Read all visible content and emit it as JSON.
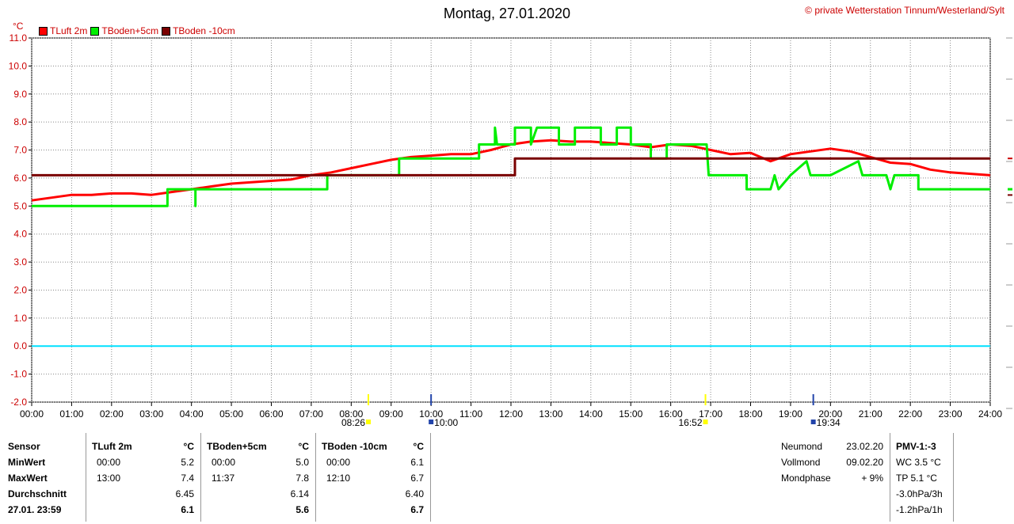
{
  "header": {
    "title": "Montag, 27.01.2020",
    "copyright": "© private Wetterstation Tinnum/Westerland/Sylt",
    "unit": "°C"
  },
  "chart_data": {
    "type": "line",
    "x_ticks": [
      "00:00",
      "01:00",
      "02:00",
      "03:00",
      "04:00",
      "05:00",
      "06:00",
      "07:00",
      "08:00",
      "09:00",
      "10:00",
      "11:00",
      "12:00",
      "13:00",
      "14:00",
      "15:00",
      "16:00",
      "17:00",
      "18:00",
      "19:00",
      "20:00",
      "21:00",
      "22:00",
      "23:00",
      "24:00"
    ],
    "y_ticks": [
      "11.0",
      "10.0",
      "9.0",
      "8.0",
      "7.0",
      "6.0",
      "5.0",
      "4.0",
      "3.0",
      "2.0",
      "1.0",
      "0.0",
      "-1.0",
      "-2.0"
    ],
    "xlim": [
      0,
      24
    ],
    "ylim": [
      -2,
      11
    ],
    "grid": true,
    "legend_position": "top-left",
    "zero_line_color": "#00e0ff",
    "series": [
      {
        "name": "TLuft 2m",
        "color": "#ff0000",
        "points": [
          [
            0,
            5.2
          ],
          [
            0.5,
            5.3
          ],
          [
            1,
            5.4
          ],
          [
            1.5,
            5.4
          ],
          [
            2,
            5.45
          ],
          [
            2.5,
            5.45
          ],
          [
            3,
            5.4
          ],
          [
            3.5,
            5.5
          ],
          [
            4,
            5.6
          ],
          [
            4.5,
            5.7
          ],
          [
            5,
            5.8
          ],
          [
            5.5,
            5.85
          ],
          [
            6,
            5.9
          ],
          [
            6.5,
            5.95
          ],
          [
            7,
            6.1
          ],
          [
            7.5,
            6.2
          ],
          [
            8,
            6.35
          ],
          [
            8.5,
            6.5
          ],
          [
            9,
            6.65
          ],
          [
            9.5,
            6.75
          ],
          [
            10,
            6.8
          ],
          [
            10.5,
            6.85
          ],
          [
            11,
            6.85
          ],
          [
            11.5,
            7.0
          ],
          [
            12,
            7.2
          ],
          [
            12.5,
            7.3
          ],
          [
            13,
            7.35
          ],
          [
            13.5,
            7.3
          ],
          [
            14,
            7.3
          ],
          [
            14.5,
            7.25
          ],
          [
            15,
            7.2
          ],
          [
            15.5,
            7.1
          ],
          [
            16,
            7.2
          ],
          [
            16.5,
            7.15
          ],
          [
            17,
            7.0
          ],
          [
            17.5,
            6.85
          ],
          [
            18,
            6.9
          ],
          [
            18.5,
            6.6
          ],
          [
            19,
            6.85
          ],
          [
            19.5,
            6.95
          ],
          [
            20,
            7.05
          ],
          [
            20.5,
            6.95
          ],
          [
            21,
            6.75
          ],
          [
            21.5,
            6.55
          ],
          [
            22,
            6.5
          ],
          [
            22.5,
            6.3
          ],
          [
            23,
            6.2
          ],
          [
            24,
            6.1
          ]
        ]
      },
      {
        "name": "TBoden+5cm",
        "color": "#00ee00",
        "points": [
          [
            0,
            5.0
          ],
          [
            3.4,
            5.0
          ],
          [
            3.4,
            5.6
          ],
          [
            4.1,
            5.6
          ],
          [
            4.1,
            5.0
          ],
          [
            4.1,
            5.6
          ],
          [
            7.4,
            5.6
          ],
          [
            7.4,
            6.1
          ],
          [
            9.2,
            6.1
          ],
          [
            9.2,
            6.7
          ],
          [
            11.2,
            6.7
          ],
          [
            11.2,
            7.2
          ],
          [
            11.6,
            7.2
          ],
          [
            11.6,
            7.8
          ],
          [
            11.65,
            7.2
          ],
          [
            12.1,
            7.2
          ],
          [
            12.1,
            7.8
          ],
          [
            12.5,
            7.8
          ],
          [
            12.5,
            7.2
          ],
          [
            12.65,
            7.8
          ],
          [
            13.2,
            7.8
          ],
          [
            13.2,
            7.2
          ],
          [
            13.6,
            7.2
          ],
          [
            13.6,
            7.8
          ],
          [
            14.25,
            7.8
          ],
          [
            14.25,
            7.2
          ],
          [
            14.65,
            7.2
          ],
          [
            14.65,
            7.8
          ],
          [
            15.0,
            7.8
          ],
          [
            15.0,
            7.2
          ],
          [
            15.5,
            7.2
          ],
          [
            15.5,
            6.7
          ],
          [
            15.9,
            6.7
          ],
          [
            15.9,
            7.2
          ],
          [
            16.5,
            7.2
          ],
          [
            16.9,
            7.2
          ],
          [
            16.95,
            6.1
          ],
          [
            17.9,
            6.1
          ],
          [
            17.9,
            5.6
          ],
          [
            18.5,
            5.6
          ],
          [
            18.6,
            6.1
          ],
          [
            18.7,
            5.6
          ],
          [
            19.0,
            6.1
          ],
          [
            19.4,
            6.6
          ],
          [
            19.5,
            6.1
          ],
          [
            20.0,
            6.1
          ],
          [
            20.7,
            6.6
          ],
          [
            20.8,
            6.1
          ],
          [
            21.4,
            6.1
          ],
          [
            21.5,
            5.6
          ],
          [
            21.6,
            6.1
          ],
          [
            22.2,
            6.1
          ],
          [
            22.2,
            5.6
          ],
          [
            24,
            5.6
          ]
        ]
      },
      {
        "name": "TBoden -10cm",
        "color": "#7a0000",
        "points": [
          [
            0,
            6.1
          ],
          [
            12.1,
            6.1
          ],
          [
            12.1,
            6.7
          ],
          [
            24,
            6.7
          ]
        ]
      }
    ],
    "markers": [
      {
        "label": "08:26",
        "x": 8.43,
        "color": "#ffff00"
      },
      {
        "label": "10:00",
        "x": 10.0,
        "color": "#2244aa"
      },
      {
        "label": "16:52",
        "x": 16.87,
        "color": "#ffff00"
      },
      {
        "label": "19:34",
        "x": 19.57,
        "color": "#2244aa"
      }
    ]
  },
  "stats": {
    "sensor_col": {
      "header": "Sensor",
      "rows": [
        "MinWert",
        "MaxWert",
        "Durchschnitt",
        "27.01. 23:59"
      ]
    },
    "sensors": [
      {
        "name": "TLuft 2m",
        "unit": "°C",
        "min_time": "00:00",
        "min": "5.2",
        "max_time": "13:00",
        "max": "7.4",
        "avg": "6.45",
        "current": "6.1"
      },
      {
        "name": "TBoden+5cm",
        "unit": "°C",
        "min_time": "00:00",
        "min": "5.0",
        "max_time": "11:37",
        "max": "7.8",
        "avg": "6.14",
        "current": "5.6"
      },
      {
        "name": "TBoden -10cm",
        "unit": "°C",
        "min_time": "00:00",
        "min": "6.1",
        "max_time": "12:10",
        "max": "6.7",
        "avg": "6.40",
        "current": "6.7"
      }
    ],
    "moon": [
      {
        "label": "Neumond",
        "value": "23.02.20"
      },
      {
        "label": "Vollmond",
        "value": "09.02.20"
      },
      {
        "label": "Mondphase",
        "value": "+ 9%"
      }
    ],
    "pmv": {
      "header": "PMV-1:-3",
      "lines": [
        "WC 3.5 °C",
        "TP 5.1 °C",
        "-3.0hPa/3h",
        "-1.2hPa/1h"
      ]
    }
  }
}
